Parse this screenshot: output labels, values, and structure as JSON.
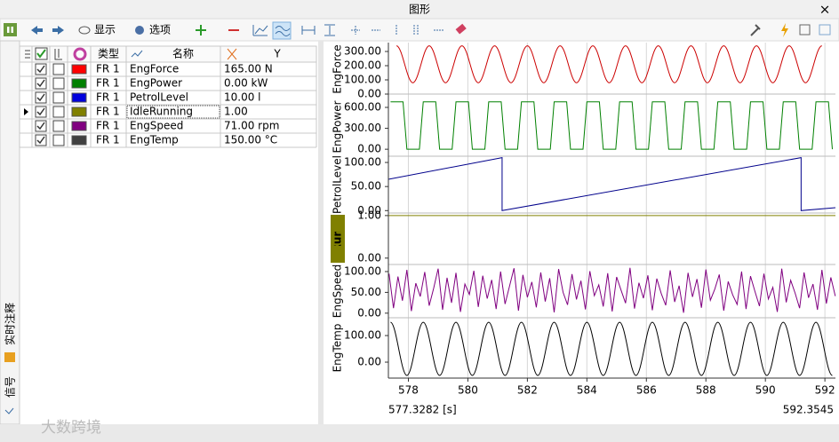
{
  "window": {
    "title": "图形"
  },
  "toolbar": {
    "display": "显示",
    "options": "选项"
  },
  "side_tabs": [
    "实时注释",
    "信号"
  ],
  "watermark": "大数跨境",
  "table": {
    "headers": {
      "type": "类型",
      "name": "名称",
      "y": "Y"
    },
    "rows": [
      {
        "type": "FR 1",
        "name": "EngForce",
        "y": "165.00 N",
        "color": "#ff0000",
        "visible": true,
        "pinned": false,
        "current": false
      },
      {
        "type": "FR 1",
        "name": "EngPower",
        "y": "0.00 kW",
        "color": "#008000",
        "visible": true,
        "pinned": false,
        "current": false
      },
      {
        "type": "FR 1",
        "name": "PetrolLevel",
        "y": "10.00 l",
        "color": "#0000dd",
        "visible": true,
        "pinned": false,
        "current": false
      },
      {
        "type": "FR 1",
        "name": "IdleRunning",
        "y": "1.00",
        "color": "#808000",
        "visible": true,
        "pinned": false,
        "current": true
      },
      {
        "type": "FR 1",
        "name": "EngSpeed",
        "y": "71.00 rpm",
        "color": "#800080",
        "visible": true,
        "pinned": false,
        "current": false
      },
      {
        "type": "FR 1",
        "name": "EngTemp",
        "y": "150.00 °C",
        "color": "#404040",
        "visible": true,
        "pinned": false,
        "current": false
      }
    ]
  },
  "time_axis": {
    "xlim": [
      577.3282,
      592.3545
    ],
    "xticks": [
      578,
      580,
      582,
      584,
      586,
      588,
      590,
      592
    ],
    "start_label": "577.3282 [s]",
    "end_label": "592.3545",
    "grid": true
  },
  "chart_data": [
    {
      "type": "line",
      "ylabel": "EngForce",
      "color": "#cc0000",
      "smooth": true,
      "ylim": [
        0,
        350
      ],
      "yticks": [
        {
          "value": 0,
          "label": "0.00"
        },
        {
          "value": 100,
          "label": "100.00"
        },
        {
          "value": 200,
          "label": "200.00"
        },
        {
          "value": 300,
          "label": "300.00"
        }
      ],
      "x": [
        577.6,
        578.15,
        578.7,
        579.25,
        579.8,
        580.35,
        580.9,
        581.45,
        582,
        582.55,
        583.1,
        583.65,
        584.2,
        584.75,
        585.3,
        585.85,
        586.4,
        586.95,
        587.5,
        588.05,
        588.6,
        589.15,
        589.7,
        590.25,
        590.8,
        591.35,
        591.9
      ],
      "values": [
        340,
        80,
        340,
        80,
        340,
        80,
        340,
        80,
        340,
        80,
        340,
        80,
        340,
        80,
        340,
        80,
        340,
        80,
        340,
        80,
        340,
        80,
        340,
        80,
        340,
        80,
        340
      ]
    },
    {
      "type": "line",
      "ylabel": "EngPower",
      "color": "#008000",
      "smooth": false,
      "ylim": [
        -100,
        740
      ],
      "yticks": [
        {
          "value": 0,
          "label": "0.00"
        },
        {
          "value": 300,
          "label": "300.00"
        },
        {
          "value": 600,
          "label": "600.00"
        }
      ],
      "x": [
        577.4,
        577.82,
        577.95,
        578.37,
        578.5,
        578.92,
        579.05,
        579.47,
        579.6,
        580.02,
        580.15,
        580.57,
        580.7,
        581.12,
        581.25,
        581.67,
        581.8,
        582.22,
        582.35,
        582.77,
        582.9,
        583.32,
        583.45,
        583.87,
        584,
        584.42,
        584.55,
        584.97,
        585.1,
        585.52,
        585.65,
        586.07,
        586.2,
        586.62,
        586.75,
        587.17,
        587.3,
        587.72,
        587.85,
        588.27,
        588.4,
        588.82,
        588.95,
        589.37,
        589.5,
        589.92,
        590.05,
        590.47,
        590.6,
        591.02,
        591.15,
        591.57,
        591.7,
        592.12,
        592.25
      ],
      "values": [
        680,
        680,
        0,
        0,
        680,
        680,
        0,
        0,
        680,
        680,
        0,
        0,
        680,
        680,
        0,
        0,
        680,
        680,
        0,
        0,
        680,
        680,
        0,
        0,
        680,
        680,
        0,
        0,
        680,
        680,
        0,
        0,
        680,
        680,
        0,
        0,
        680,
        680,
        0,
        0,
        680,
        680,
        0,
        0,
        680,
        680,
        0,
        0,
        680,
        680,
        0,
        0,
        680,
        680,
        0
      ]
    },
    {
      "type": "line",
      "ylabel": "PetrolLevel",
      "color": "#00008b",
      "smooth": false,
      "ylim": [
        -5,
        113
      ],
      "yticks": [
        {
          "value": 0,
          "label": "0.00"
        },
        {
          "value": 50,
          "label": "50.00"
        },
        {
          "value": 100,
          "label": "100.00"
        }
      ],
      "x": [
        577.3282,
        581.15,
        581.15,
        591.2,
        591.2,
        592.3545
      ],
      "values": [
        65,
        110,
        0,
        110,
        0,
        6
      ]
    },
    {
      "type": "line",
      "ylabel": "IdleRunning",
      "color": "#808000",
      "smooth": false,
      "highlight": true,
      "ylim": [
        -0.15,
        1.06
      ],
      "yticks": [
        {
          "value": 0,
          "label": "0.00"
        },
        {
          "value": 1,
          "label": "1.00"
        }
      ],
      "x": [
        577.3282,
        592.3545
      ],
      "values": [
        1,
        1
      ]
    },
    {
      "type": "line",
      "ylabel": "EngSpeed",
      "color": "#800080",
      "smooth": false,
      "ylim": [
        -11,
        117
      ],
      "yticks": [
        {
          "value": 0,
          "label": "0.00"
        },
        {
          "value": 50,
          "label": "50.00"
        },
        {
          "value": 100,
          "label": "100.00"
        }
      ],
      "x": [
        577.35,
        577.5,
        577.65,
        577.8,
        577.95,
        578.1,
        578.25,
        578.4,
        578.55,
        578.7,
        578.85,
        579,
        579.15,
        579.3,
        579.45,
        579.6,
        579.75,
        579.9,
        580.05,
        580.2,
        580.35,
        580.5,
        580.65,
        580.8,
        580.95,
        581.1,
        581.25,
        581.4,
        581.55,
        581.7,
        581.85,
        582,
        582.15,
        582.3,
        582.45,
        582.6,
        582.75,
        582.9,
        583.05,
        583.2,
        583.35,
        583.5,
        583.65,
        583.8,
        583.95,
        584.1,
        584.25,
        584.4,
        584.55,
        584.7,
        584.85,
        585,
        585.15,
        585.3,
        585.45,
        585.6,
        585.75,
        585.9,
        586.05,
        586.2,
        586.35,
        586.5,
        586.65,
        586.8,
        586.95,
        587.1,
        587.25,
        587.4,
        587.55,
        587.7,
        587.85,
        588,
        588.15,
        588.3,
        588.45,
        588.6,
        588.75,
        588.9,
        589.05,
        589.2,
        589.35,
        589.5,
        589.65,
        589.8,
        589.95,
        590.1,
        590.25,
        590.4,
        590.55,
        590.7,
        590.85,
        591,
        591.15,
        591.3,
        591.45,
        591.6,
        591.75,
        591.9,
        592.05,
        592.2,
        592.35
      ],
      "values": [
        95,
        12,
        88,
        30,
        104,
        5,
        72,
        40,
        99,
        18,
        60,
        107,
        8,
        85,
        25,
        97,
        3,
        70,
        45,
        102,
        15,
        90,
        35,
        80,
        10,
        100,
        22,
        65,
        108,
        6,
        92,
        38,
        75,
        14,
        98,
        28,
        84,
        2,
        106,
        50,
        20,
        94,
        33,
        78,
        9,
        101,
        42,
        68,
        16,
        96,
        4,
        87,
        55,
        24,
        109,
        11,
        73,
        36,
        91,
        7,
        83,
        47,
        19,
        103,
        27,
        66,
        1,
        97,
        39,
        82,
        13,
        105,
        31,
        58,
        93,
        6,
        76,
        44,
        21,
        100,
        10,
        89,
        52,
        17,
        95,
        34,
        62,
        3,
        107,
        26,
        79,
        48,
        12,
        98,
        37,
        70,
        8,
        104,
        23,
        86,
        41
      ]
    },
    {
      "type": "line",
      "ylabel": "EngTemp",
      "color": "#000000",
      "smooth": true,
      "ylim": [
        -60,
        167
      ],
      "yticks": [
        {
          "value": 0,
          "label": "0.00"
        },
        {
          "value": 100,
          "label": "100.00"
        }
      ],
      "x": [
        577.4,
        577.95,
        578.5,
        579.05,
        579.6,
        580.15,
        580.7,
        581.25,
        581.8,
        582.35,
        582.9,
        583.45,
        584,
        584.55,
        585.1,
        585.65,
        586.2,
        586.75,
        587.3,
        587.85,
        588.4,
        588.95,
        589.5,
        590.05,
        590.6,
        591.15,
        591.7,
        592.25
      ],
      "values": [
        150,
        -50,
        150,
        -50,
        150,
        -50,
        150,
        -50,
        150,
        -50,
        150,
        -50,
        150,
        -50,
        150,
        -50,
        150,
        -50,
        150,
        -50,
        150,
        -50,
        150,
        -50,
        150,
        -50,
        150,
        -50
      ]
    }
  ]
}
